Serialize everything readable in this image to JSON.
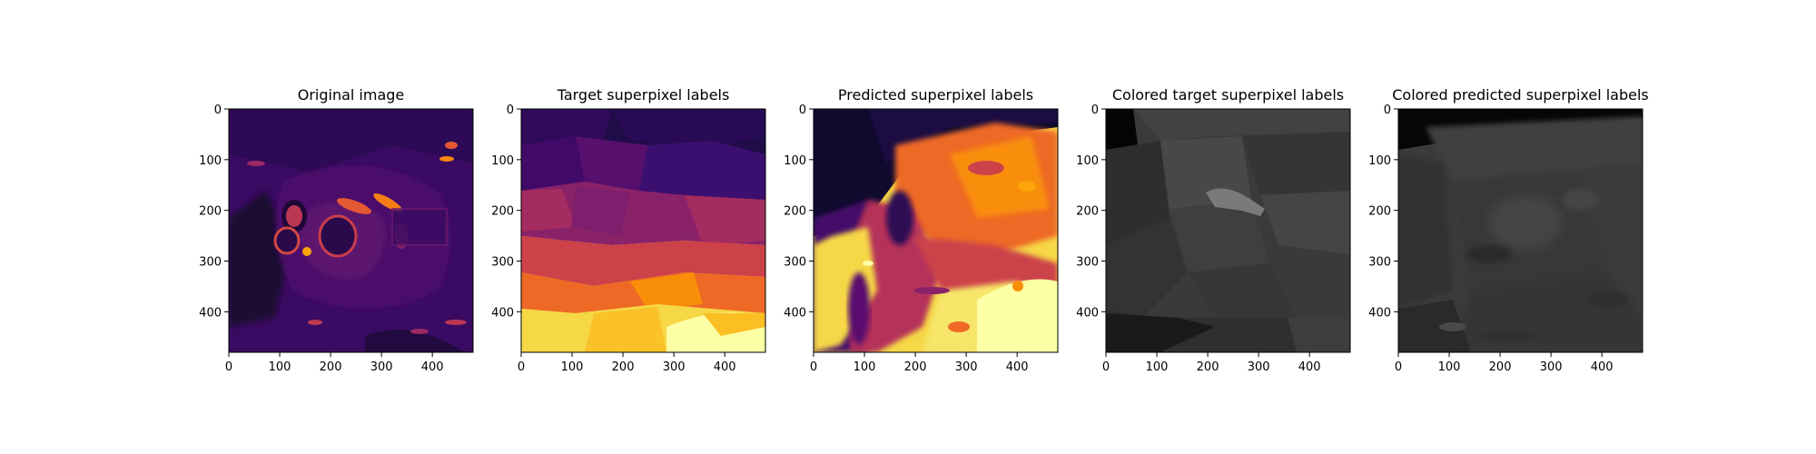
{
  "figure": {
    "panels": [
      {
        "title": "Original image",
        "theme": "inferno-original"
      },
      {
        "title": "Target superpixel labels",
        "theme": "inferno-target"
      },
      {
        "title": "Predicted superpixel labels",
        "theme": "inferno-pred"
      },
      {
        "title": "Colored target superpixel labels",
        "theme": "gray-target"
      },
      {
        "title": "Colored predicted superpixel labels",
        "theme": "gray-pred"
      }
    ]
  },
  "chart_data": [
    {
      "type": "heatmap",
      "title": "Original image",
      "xlabel": "",
      "ylabel": "",
      "xticks": [
        0,
        100,
        200,
        300,
        400
      ],
      "yticks": [
        0,
        100,
        200,
        300,
        400
      ],
      "xlim": [
        0,
        480
      ],
      "ylim": [
        480,
        0
      ],
      "colormap": "inferno"
    },
    {
      "type": "heatmap",
      "title": "Target superpixel labels",
      "xlabel": "",
      "ylabel": "",
      "xticks": [
        0,
        100,
        200,
        300,
        400
      ],
      "yticks": [
        0,
        100,
        200,
        300,
        400
      ],
      "xlim": [
        0,
        480
      ],
      "ylim": [
        480,
        0
      ],
      "colormap": "inferno"
    },
    {
      "type": "heatmap",
      "title": "Predicted superpixel labels",
      "xlabel": "",
      "ylabel": "",
      "xticks": [
        0,
        100,
        200,
        300,
        400
      ],
      "yticks": [
        0,
        100,
        200,
        300,
        400
      ],
      "xlim": [
        0,
        480
      ],
      "ylim": [
        480,
        0
      ],
      "colormap": "inferno"
    },
    {
      "type": "heatmap",
      "title": "Colored target superpixel labels",
      "xlabel": "",
      "ylabel": "",
      "xticks": [
        0,
        100,
        200,
        300,
        400
      ],
      "yticks": [
        0,
        100,
        200,
        300,
        400
      ],
      "xlim": [
        0,
        480
      ],
      "ylim": [
        480,
        0
      ],
      "colormap": "gray"
    },
    {
      "type": "heatmap",
      "title": "Colored predicted superpixel labels",
      "xlabel": "",
      "ylabel": "",
      "xticks": [
        0,
        100,
        200,
        300,
        400
      ],
      "yticks": [
        0,
        100,
        200,
        300,
        400
      ],
      "xlim": [
        0,
        480
      ],
      "ylim": [
        480,
        0
      ],
      "colormap": "gray"
    }
  ]
}
